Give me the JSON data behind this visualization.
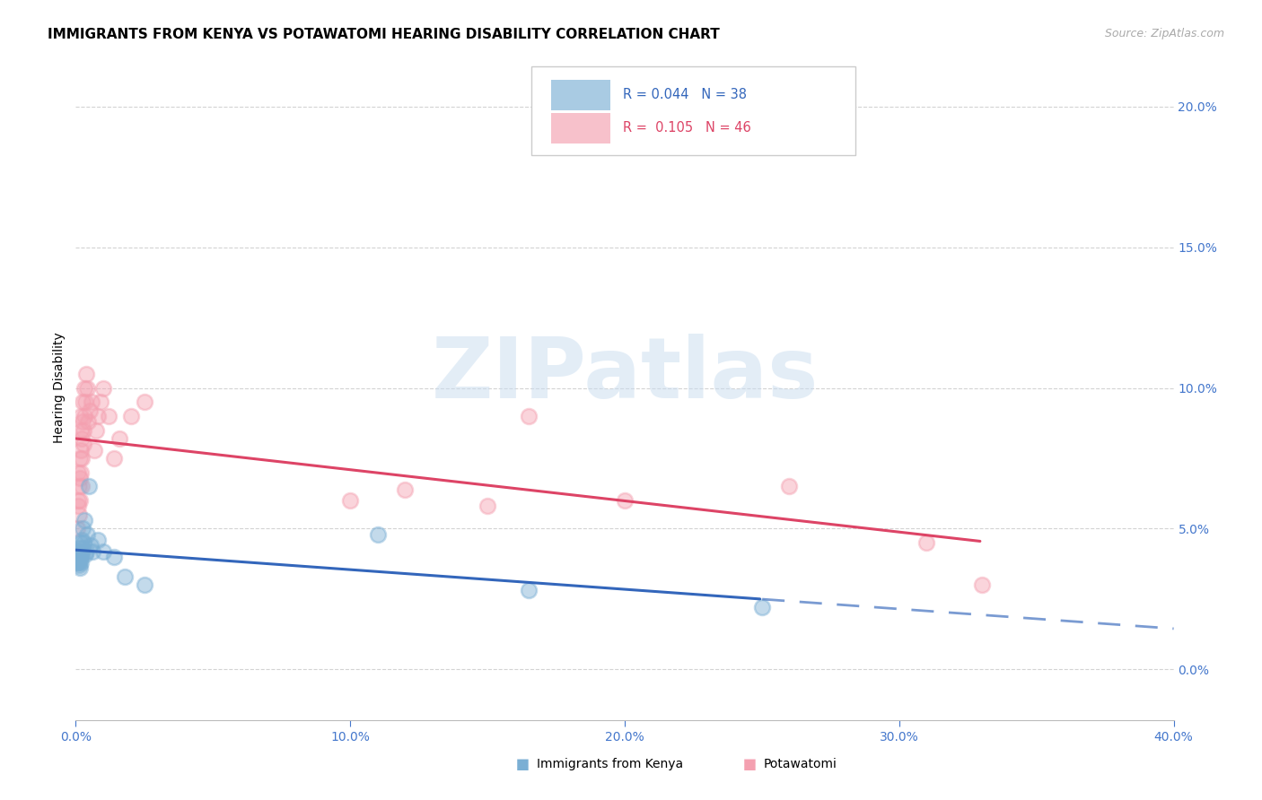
{
  "title": "IMMIGRANTS FROM KENYA VS POTAWATOMI HEARING DISABILITY CORRELATION CHART",
  "source": "Source: ZipAtlas.com",
  "ylabel": "Hearing Disability",
  "xlim": [
    0.0,
    0.4
  ],
  "ylim": [
    -0.018,
    0.218
  ],
  "xtick_vals": [
    0.0,
    0.1,
    0.2,
    0.3,
    0.4
  ],
  "xtick_labels": [
    "0.0%",
    "10.0%",
    "20.0%",
    "30.0%",
    "40.0%"
  ],
  "ytick_vals": [
    0.0,
    0.05,
    0.1,
    0.15,
    0.2
  ],
  "ytick_labels": [
    "0.0%",
    "5.0%",
    "10.0%",
    "15.0%",
    "20.0%"
  ],
  "kenya_color": "#7BAFD4",
  "potawatomi_color": "#F4A0B0",
  "kenya_line_color": "#3366BB",
  "potawatomi_line_color": "#DD4466",
  "kenya_legend": "R = 0.044   N = 38",
  "potawatomi_legend": "R =  0.105   N = 46",
  "tick_color": "#4477CC",
  "grid_color": "#CCCCCC",
  "bg_color": "#FFFFFF",
  "kenya_x": [
    0.0005,
    0.0005,
    0.0005,
    0.0008,
    0.0008,
    0.001,
    0.001,
    0.001,
    0.001,
    0.0012,
    0.0012,
    0.0012,
    0.0015,
    0.0015,
    0.0015,
    0.0018,
    0.0018,
    0.002,
    0.0022,
    0.0022,
    0.0025,
    0.0025,
    0.0028,
    0.003,
    0.0035,
    0.0038,
    0.0042,
    0.0048,
    0.0055,
    0.006,
    0.008,
    0.01,
    0.014,
    0.018,
    0.025,
    0.11,
    0.165,
    0.25
  ],
  "kenya_y": [
    0.04,
    0.038,
    0.041,
    0.038,
    0.04,
    0.039,
    0.04,
    0.042,
    0.038,
    0.043,
    0.04,
    0.037,
    0.042,
    0.039,
    0.036,
    0.041,
    0.038,
    0.045,
    0.046,
    0.041,
    0.05,
    0.043,
    0.045,
    0.053,
    0.041,
    0.042,
    0.048,
    0.065,
    0.044,
    0.042,
    0.046,
    0.042,
    0.04,
    0.033,
    0.03,
    0.048,
    0.028,
    0.022
  ],
  "potawatomi_x": [
    0.0005,
    0.0008,
    0.001,
    0.001,
    0.0012,
    0.0012,
    0.0015,
    0.0015,
    0.0015,
    0.0018,
    0.0018,
    0.0018,
    0.002,
    0.0022,
    0.0022,
    0.0022,
    0.0025,
    0.0025,
    0.0028,
    0.0028,
    0.003,
    0.0032,
    0.0035,
    0.0038,
    0.0042,
    0.0045,
    0.005,
    0.0058,
    0.0068,
    0.0075,
    0.008,
    0.009,
    0.01,
    0.012,
    0.014,
    0.016,
    0.02,
    0.025,
    0.1,
    0.12,
    0.15,
    0.165,
    0.2,
    0.26,
    0.31,
    0.33
  ],
  "potawatomi_y": [
    0.05,
    0.06,
    0.058,
    0.07,
    0.065,
    0.055,
    0.075,
    0.068,
    0.06,
    0.085,
    0.078,
    0.07,
    0.09,
    0.082,
    0.075,
    0.065,
    0.095,
    0.088,
    0.085,
    0.08,
    0.1,
    0.09,
    0.095,
    0.105,
    0.1,
    0.088,
    0.092,
    0.095,
    0.078,
    0.085,
    0.09,
    0.095,
    0.1,
    0.09,
    0.075,
    0.082,
    0.09,
    0.095,
    0.06,
    0.064,
    0.058,
    0.09,
    0.06,
    0.065,
    0.045,
    0.03
  ],
  "watermark_text": "ZIPatlas",
  "title_fontsize": 11,
  "tick_fontsize": 10,
  "source_fontsize": 9
}
